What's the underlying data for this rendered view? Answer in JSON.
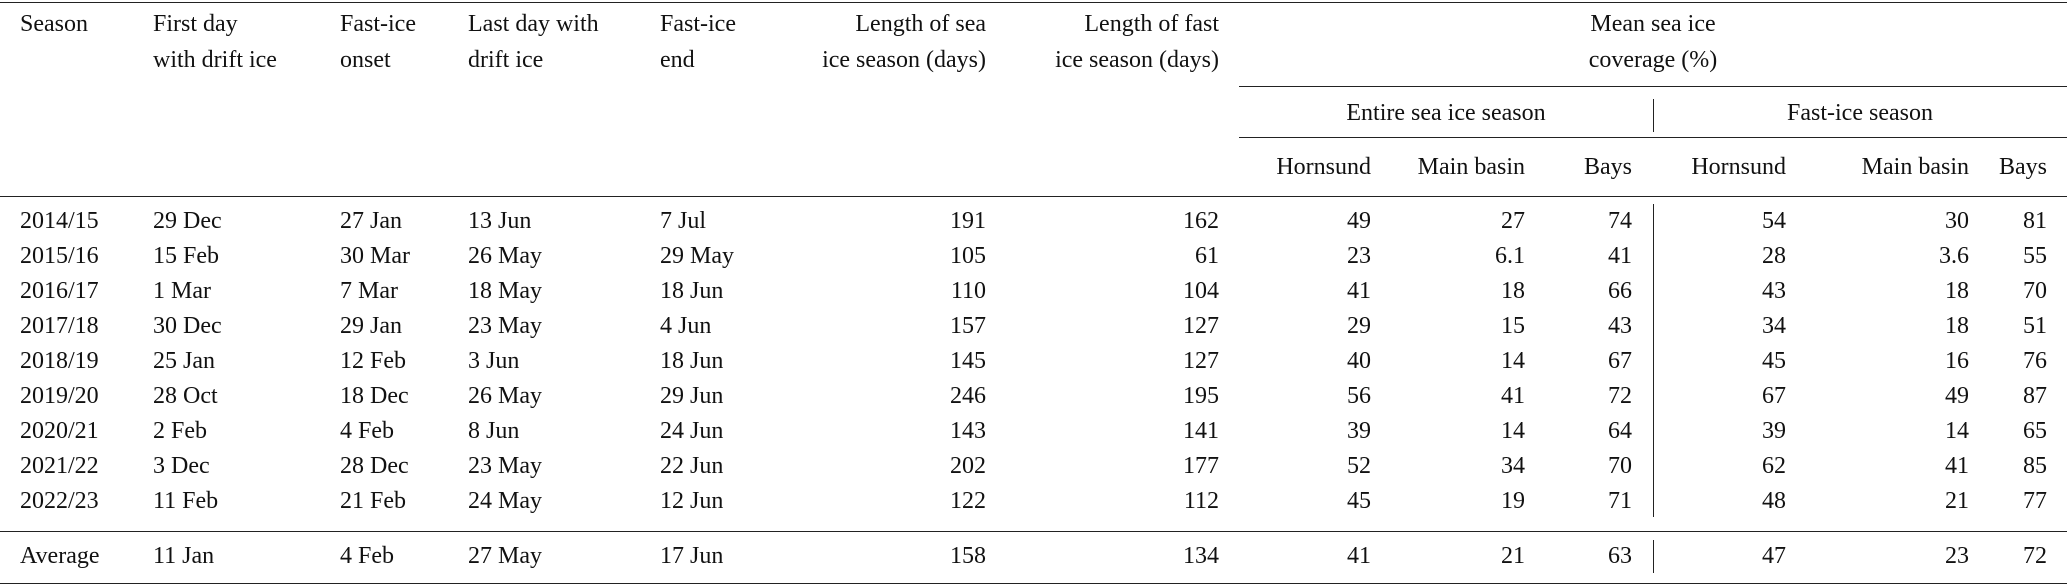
{
  "table": {
    "header": {
      "columns": [
        "Season",
        "First day\nwith drift ice",
        "Fast-ice\nonset",
        "Last day with\ndrift ice",
        "Fast-ice\nend",
        "Length of sea\nice season (days)",
        "Length of fast\nice season (days)"
      ],
      "group": "Mean sea ice\ncoverage (%)",
      "subgroups": [
        "Entire sea ice season",
        "Fast-ice season"
      ],
      "subcolumns": [
        "Hornsund",
        "Main basin",
        "Bays",
        "Hornsund",
        "Main basin",
        "Bays"
      ]
    },
    "rows": [
      [
        "2014/15",
        "29 Dec",
        "27 Jan",
        "13 Jun",
        "7 Jul",
        191,
        162,
        49,
        27,
        74,
        54,
        30,
        81
      ],
      [
        "2015/16",
        "15 Feb",
        "30 Mar",
        "26 May",
        "29 May",
        105,
        61,
        23,
        6.1,
        41,
        28,
        3.6,
        55
      ],
      [
        "2016/17",
        "1 Mar",
        "7 Mar",
        "18 May",
        "18 Jun",
        110,
        104,
        41,
        18,
        66,
        43,
        18,
        70
      ],
      [
        "2017/18",
        "30 Dec",
        "29 Jan",
        "23 May",
        "4 Jun",
        157,
        127,
        29,
        15,
        43,
        34,
        18,
        51
      ],
      [
        "2018/19",
        "25 Jan",
        "12 Feb",
        "3 Jun",
        "18 Jun",
        145,
        127,
        40,
        14,
        67,
        45,
        16,
        76
      ],
      [
        "2019/20",
        "28 Oct",
        "18 Dec",
        "26 May",
        "29 Jun",
        246,
        195,
        56,
        41,
        72,
        67,
        49,
        87
      ],
      [
        "2020/21",
        "2 Feb",
        "4 Feb",
        "8 Jun",
        "24 Jun",
        143,
        141,
        39,
        14,
        64,
        39,
        14,
        65
      ],
      [
        "2021/22",
        "3 Dec",
        "28 Dec",
        "23 May",
        "22 Jun",
        202,
        177,
        52,
        34,
        70,
        62,
        41,
        85
      ],
      [
        "2022/23",
        "11 Feb",
        "21 Feb",
        "24 May",
        "12 Jun",
        122,
        112,
        45,
        19,
        71,
        48,
        21,
        77
      ]
    ],
    "average": [
      "Average",
      "11 Jan",
      "4 Feb",
      "27 May",
      "17 Jun",
      158,
      134,
      41,
      21,
      63,
      47,
      23,
      72
    ]
  }
}
